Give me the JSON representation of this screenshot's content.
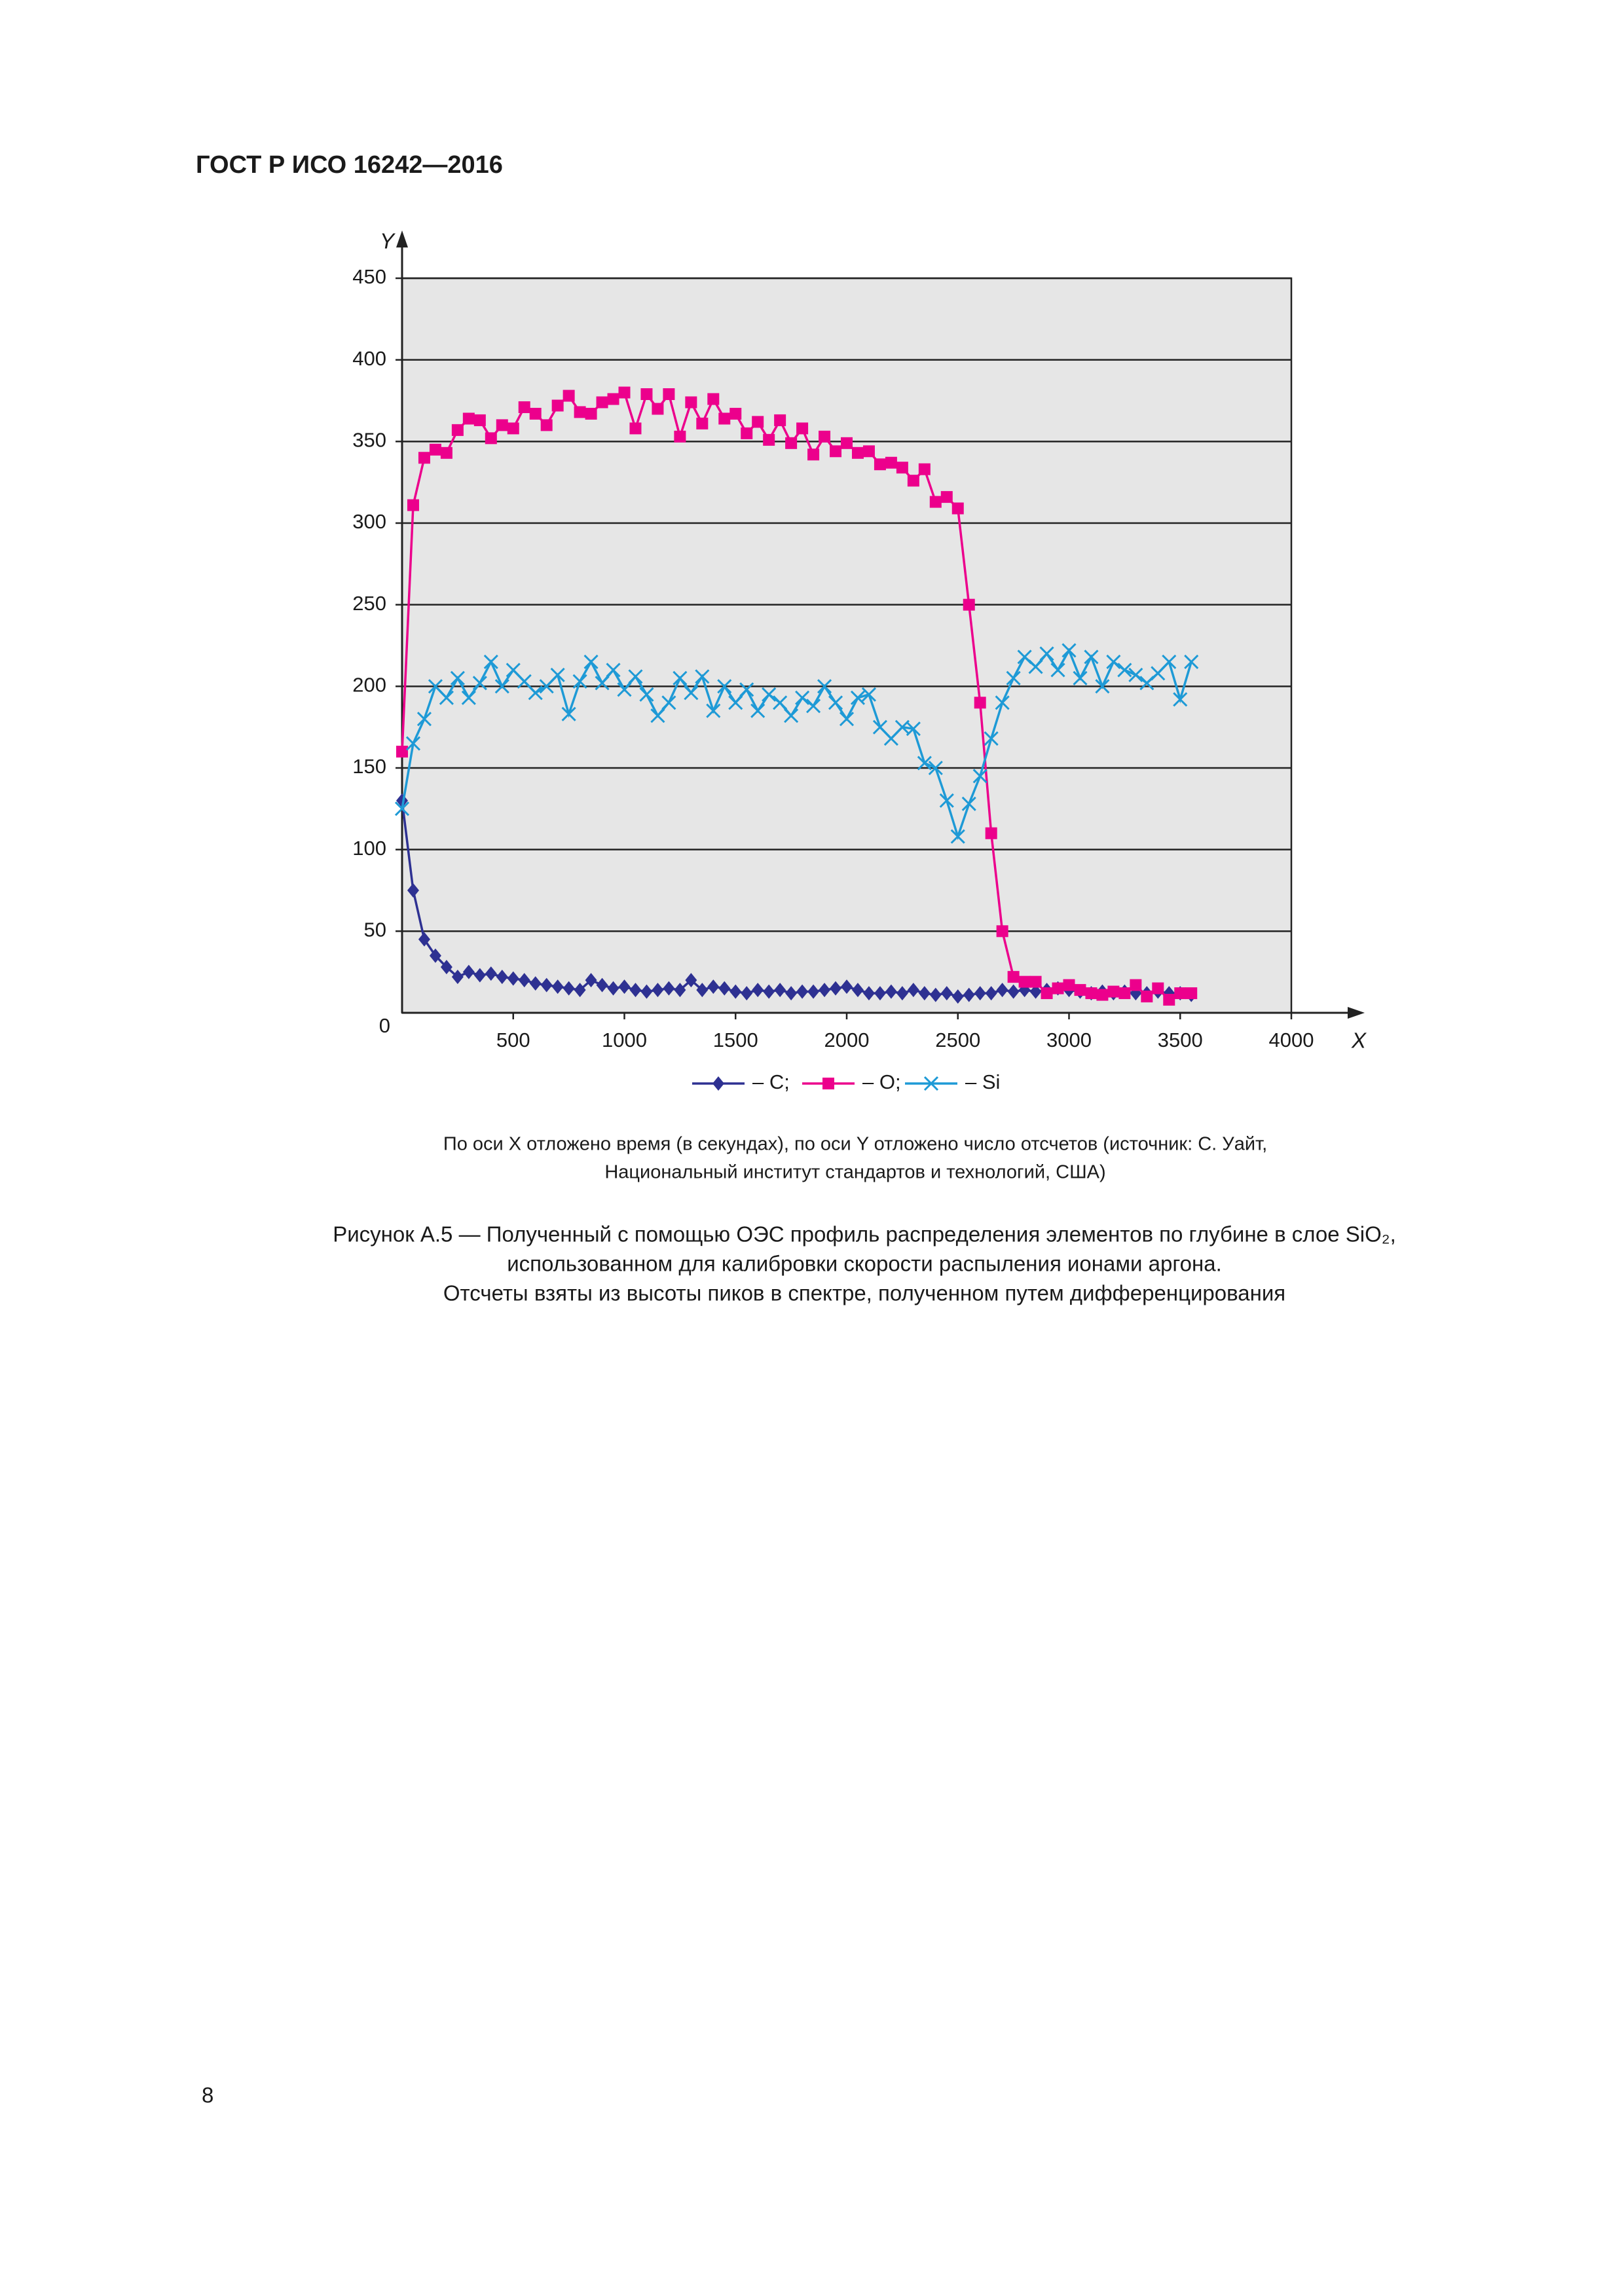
{
  "header": {
    "title": "ГОСТ Р ИСО 16242—2016"
  },
  "chart_data": {
    "type": "line",
    "xlabel": "X",
    "ylabel": "Y",
    "xlim": [
      0,
      4000
    ],
    "ylim": [
      0,
      450
    ],
    "xticks": [
      500,
      1000,
      1500,
      2000,
      2500,
      3000,
      3500,
      4000
    ],
    "yticks": [
      0,
      50,
      100,
      150,
      200,
      250,
      300,
      350,
      400,
      450
    ],
    "grid": true,
    "x": [
      0,
      50,
      100,
      150,
      200,
      250,
      300,
      350,
      400,
      450,
      500,
      550,
      600,
      650,
      700,
      750,
      800,
      850,
      900,
      950,
      1000,
      1050,
      1100,
      1150,
      1200,
      1250,
      1300,
      1350,
      1400,
      1450,
      1500,
      1550,
      1600,
      1650,
      1700,
      1750,
      1800,
      1850,
      1900,
      1950,
      2000,
      2050,
      2100,
      2150,
      2200,
      2250,
      2300,
      2350,
      2400,
      2450,
      2500,
      2550,
      2600,
      2650,
      2700,
      2750,
      2800,
      2850,
      2900,
      2950,
      3000,
      3050,
      3100,
      3150,
      3200,
      3250,
      3300,
      3350,
      3400,
      3450,
      3500,
      3550
    ],
    "series": [
      {
        "name": "– C;",
        "color": "#2e3192",
        "marker": "diamond",
        "values": [
          130,
          75,
          45,
          35,
          28,
          22,
          25,
          23,
          24,
          22,
          21,
          20,
          18,
          17,
          16,
          15,
          14,
          20,
          17,
          15,
          16,
          14,
          13,
          14,
          15,
          14,
          20,
          14,
          16,
          15,
          13,
          12,
          14,
          13,
          14,
          12,
          13,
          13,
          14,
          15,
          16,
          14,
          12,
          12,
          13,
          12,
          14,
          12,
          11,
          12,
          10,
          11,
          12,
          12,
          14,
          13,
          14,
          13,
          14,
          15,
          14,
          13,
          12,
          13,
          12,
          13,
          12,
          12,
          13,
          12,
          12,
          11
        ]
      },
      {
        "name": "– O;",
        "color": "#ec008c",
        "marker": "square",
        "values": [
          160,
          311,
          340,
          345,
          343,
          357,
          364,
          363,
          352,
          360,
          358,
          371,
          367,
          360,
          372,
          378,
          368,
          367,
          374,
          376,
          380,
          358,
          379,
          370,
          379,
          353,
          374,
          361,
          376,
          364,
          367,
          355,
          362,
          351,
          363,
          349,
          358,
          342,
          353,
          344,
          349,
          343,
          344,
          336,
          337,
          334,
          326,
          333,
          313,
          316,
          309,
          250,
          190,
          110,
          50,
          22,
          19,
          19,
          12,
          15,
          17,
          14,
          12,
          11,
          13,
          12,
          17,
          10,
          15,
          8,
          12,
          12
        ]
      },
      {
        "name": "– Si",
        "color": "#1e9ad6",
        "marker": "cross",
        "values": [
          125,
          165,
          180,
          200,
          193,
          205,
          193,
          202,
          215,
          200,
          210,
          203,
          196,
          200,
          207,
          183,
          203,
          215,
          202,
          210,
          198,
          206,
          195,
          182,
          190,
          205,
          196,
          206,
          185,
          200,
          190,
          198,
          185,
          195,
          190,
          182,
          193,
          188,
          200,
          190,
          180,
          193,
          195,
          175,
          168,
          175,
          174,
          153,
          150,
          130,
          108,
          128,
          145,
          168,
          190,
          205,
          218,
          212,
          220,
          210,
          222,
          205,
          218,
          200,
          215,
          210,
          207,
          202,
          208,
          215,
          192,
          215
        ]
      }
    ]
  },
  "note": [
    "По оси X отложено время (в секундах), по оси Y отложено число отсчетов (источник: С. Уайт,",
    "Национальный институт стандартов и технологий, США)"
  ],
  "caption": [
    "Рисунок А.5 — Полученный с помощью ОЭС профиль распределения элементов по глубине в слое SiO₂,",
    "использованном для калибровки скорости распыления ионами аргона.",
    "Отсчеты взяты из высоты пиков в спектре, полученном путем дифференцирования"
  ],
  "page_number": "8"
}
